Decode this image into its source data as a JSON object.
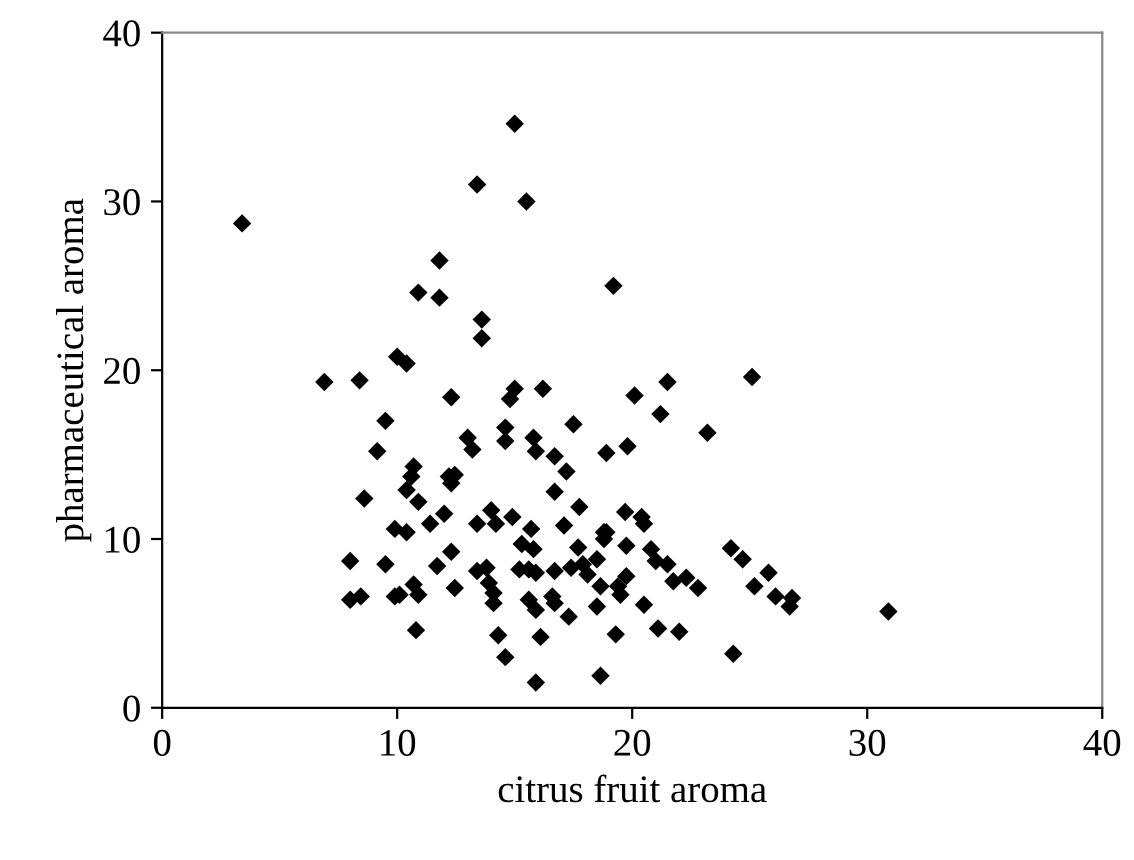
{
  "chart_data": {
    "type": "scatter",
    "xlabel": "citrus fruit aroma",
    "ylabel": "pharmaceutical aroma",
    "xlim": [
      0,
      40
    ],
    "ylim": [
      0,
      40
    ],
    "xticks": [
      0,
      10,
      20,
      30,
      40
    ],
    "yticks": [
      0,
      10,
      20,
      30,
      40
    ],
    "grid": false,
    "legend": false,
    "marker": "diamond",
    "series": [
      {
        "color": "#000000",
        "x": [
          3.4,
          15.0,
          13.4,
          15.5,
          11.8,
          10.9,
          11.8,
          13.6,
          13.6,
          10.0,
          10.4,
          19.2,
          6.9,
          8.4,
          12.3,
          15.0,
          14.8,
          16.2,
          20.1,
          21.5,
          21.2,
          25.1,
          23.2,
          18.9,
          19.8,
          9.5,
          9.15,
          13.0,
          13.2,
          14.6,
          14.6,
          15.8,
          15.9,
          17.5,
          16.7,
          17.2,
          16.7,
          17.75,
          10.7,
          10.6,
          10.4,
          8.6,
          10.9,
          12.2,
          12.45,
          12.3,
          12.0,
          11.4,
          9.9,
          10.4,
          13.4,
          14.0,
          14.2,
          14.9,
          15.7,
          15.3,
          15.8,
          17.1,
          17.7,
          18.8,
          18.5,
          8.0,
          9.5,
          11.7,
          12.3,
          13.4,
          13.8,
          13.9,
          14.1,
          14.1,
          15.2,
          15.6,
          15.9,
          16.7,
          17.4,
          17.9,
          18.1,
          18.65,
          19.4,
          18.5,
          16.6,
          16.7,
          15.6,
          15.9,
          17.3,
          19.3,
          16.1,
          14.3,
          14.6,
          10.8,
          8.0,
          8.45,
          9.9,
          10.1,
          10.7,
          10.9,
          12.45,
          15.9,
          18.65,
          19.7,
          20.4,
          20.5,
          18.9,
          18.8,
          19.75,
          20.8,
          21.0,
          21.5,
          21.75,
          22.3,
          22.8,
          19.75,
          19.5,
          20.5,
          21.1,
          22.0,
          24.2,
          24.7,
          25.8,
          25.2,
          26.1,
          26.8,
          26.7,
          24.3,
          30.9
        ],
        "values": [
          28.7,
          34.6,
          31.0,
          30.0,
          26.5,
          24.6,
          24.3,
          23.0,
          21.9,
          20.8,
          20.4,
          25.0,
          19.3,
          19.4,
          18.4,
          18.9,
          18.3,
          18.9,
          18.5,
          19.3,
          17.4,
          19.6,
          16.3,
          15.1,
          15.5,
          17.0,
          15.2,
          16.0,
          15.3,
          16.6,
          15.8,
          16.0,
          15.2,
          16.8,
          14.9,
          14.0,
          12.8,
          11.9,
          14.3,
          13.7,
          12.9,
          12.4,
          12.2,
          13.7,
          13.8,
          13.3,
          11.5,
          10.9,
          10.6,
          10.4,
          10.9,
          11.7,
          10.9,
          11.3,
          10.6,
          9.7,
          9.4,
          10.8,
          9.5,
          10.4,
          8.8,
          8.7,
          8.5,
          8.4,
          9.25,
          8.1,
          8.3,
          7.4,
          6.8,
          6.2,
          8.2,
          8.2,
          8.0,
          8.1,
          8.3,
          8.5,
          7.9,
          7.2,
          7.2,
          6.0,
          6.6,
          6.2,
          6.4,
          5.8,
          5.4,
          4.35,
          4.2,
          4.3,
          3.0,
          4.6,
          6.4,
          6.6,
          6.6,
          6.7,
          7.3,
          6.7,
          7.1,
          1.5,
          1.9,
          11.6,
          11.3,
          10.9,
          10.4,
          10.0,
          9.6,
          9.4,
          8.7,
          8.5,
          7.5,
          7.7,
          7.1,
          7.8,
          6.7,
          6.1,
          4.7,
          4.5,
          9.45,
          8.8,
          8.0,
          7.2,
          6.6,
          6.5,
          6.0,
          3.2,
          5.7
        ]
      }
    ]
  }
}
